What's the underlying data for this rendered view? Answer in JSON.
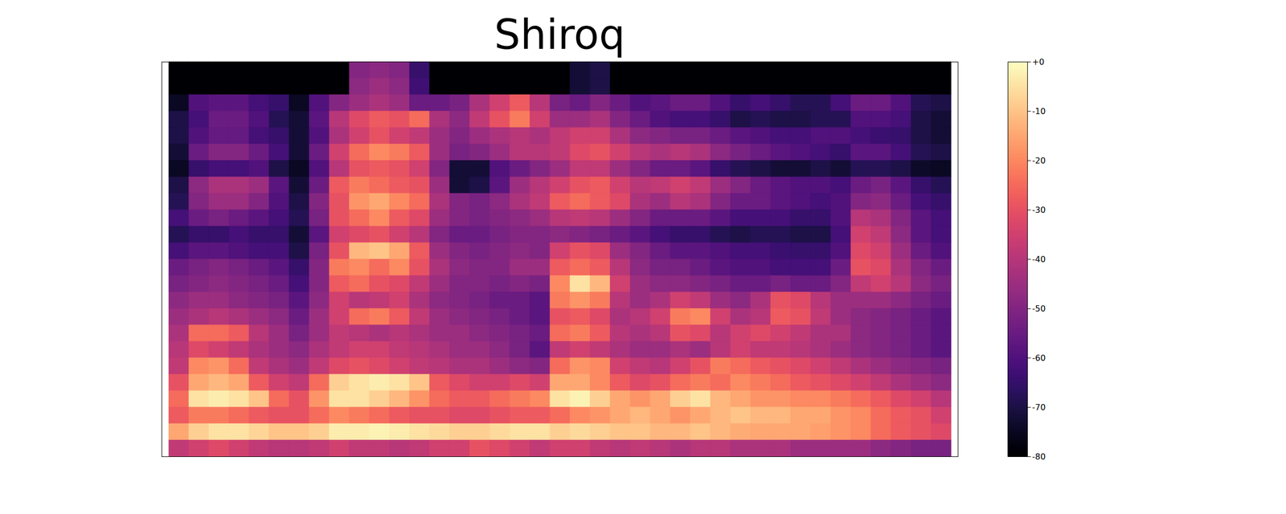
{
  "chart_data": {
    "type": "heatmap",
    "title": "Shiroq",
    "tick_labels": false,
    "color_range": [
      -80,
      0
    ],
    "color_ticks": [
      {
        "value": 0,
        "label": "+0"
      },
      -10,
      -20,
      -30,
      -40,
      -50,
      -60,
      -70,
      -80
    ],
    "cells": [
      [
        -80,
        -80,
        -80,
        -80,
        -80,
        -80,
        -80,
        -80,
        -80,
        -50,
        -48,
        -50,
        -65,
        -80,
        -80,
        -80,
        -80,
        -80,
        -80,
        -80,
        -72,
        -70,
        -80,
        -80,
        -80,
        -80,
        -80,
        -80,
        -80,
        -80,
        -80,
        -80,
        -80,
        -80,
        -80,
        -80,
        -80,
        -80,
        -80
      ],
      [
        -80,
        -80,
        -80,
        -80,
        -80,
        -80,
        -80,
        -80,
        -80,
        -48,
        -45,
        -48,
        -63,
        -80,
        -80,
        -80,
        -80,
        -80,
        -80,
        -80,
        -72,
        -70,
        -80,
        -80,
        -80,
        -80,
        -80,
        -80,
        -80,
        -80,
        -80,
        -80,
        -80,
        -80,
        -80,
        -80,
        -80,
        -80,
        -80
      ],
      [
        -75,
        -60,
        -58,
        -58,
        -62,
        -65,
        -75,
        -60,
        -50,
        -45,
        -42,
        -45,
        -55,
        -55,
        -52,
        -42,
        -35,
        -28,
        -40,
        -52,
        -55,
        -50,
        -55,
        -60,
        -58,
        -55,
        -55,
        -60,
        -65,
        -62,
        -65,
        -68,
        -68,
        -62,
        -55,
        -55,
        -60,
        -68,
        -70
      ],
      [
        -70,
        -62,
        -55,
        -55,
        -60,
        -68,
        -72,
        -58,
        -40,
        -32,
        -28,
        -30,
        -25,
        -42,
        -48,
        -38,
        -30,
        -22,
        -35,
        -45,
        -45,
        -42,
        -50,
        -55,
        -60,
        -62,
        -62,
        -65,
        -70,
        -68,
        -70,
        -70,
        -68,
        -68,
        -60,
        -60,
        -62,
        -70,
        -72
      ],
      [
        -70,
        -60,
        -56,
        -56,
        -62,
        -65,
        -72,
        -60,
        -42,
        -35,
        -30,
        -35,
        -38,
        -45,
        -50,
        -45,
        -42,
        -40,
        -42,
        -38,
        -35,
        -35,
        -42,
        -48,
        -50,
        -52,
        -52,
        -55,
        -58,
        -60,
        -62,
        -62,
        -60,
        -60,
        -62,
        -64,
        -65,
        -70,
        -72
      ],
      [
        -72,
        -55,
        -50,
        -50,
        -55,
        -62,
        -72,
        -55,
        -35,
        -25,
        -20,
        -22,
        -28,
        -45,
        -52,
        -50,
        -45,
        -40,
        -40,
        -38,
        -32,
        -30,
        -35,
        -40,
        -42,
        -40,
        -42,
        -48,
        -52,
        -55,
        -58,
        -60,
        -62,
        -65,
        -58,
        -58,
        -62,
        -68,
        -70
      ],
      [
        -75,
        -65,
        -62,
        -62,
        -60,
        -70,
        -75,
        -60,
        -40,
        -30,
        -28,
        -30,
        -35,
        -50,
        -72,
        -72,
        -60,
        -55,
        -50,
        -45,
        -38,
        -38,
        -45,
        -50,
        -55,
        -55,
        -58,
        -65,
        -68,
        -70,
        -72,
        -72,
        -70,
        -72,
        -68,
        -68,
        -70,
        -74,
        -75
      ],
      [
        -70,
        -48,
        -42,
        -42,
        -45,
        -58,
        -72,
        -55,
        -28,
        -22,
        -25,
        -28,
        -30,
        -45,
        -72,
        -70,
        -58,
        -45,
        -40,
        -35,
        -30,
        -28,
        -35,
        -40,
        -38,
        -35,
        -38,
        -45,
        -50,
        -55,
        -58,
        -60,
        -60,
        -62,
        -55,
        -52,
        -58,
        -65,
        -68
      ],
      [
        -68,
        -50,
        -45,
        -45,
        -50,
        -60,
        -70,
        -50,
        -30,
        -18,
        -15,
        -20,
        -25,
        -42,
        -50,
        -52,
        -48,
        -42,
        -38,
        -28,
        -25,
        -28,
        -32,
        -42,
        -45,
        -40,
        -42,
        -50,
        -55,
        -55,
        -58,
        -60,
        -62,
        -60,
        -50,
        -48,
        -55,
        -62,
        -65
      ],
      [
        -62,
        -55,
        -52,
        -55,
        -58,
        -62,
        -68,
        -52,
        -30,
        -25,
        -20,
        -28,
        -32,
        -45,
        -50,
        -52,
        -50,
        -48,
        -45,
        -40,
        -38,
        -40,
        -45,
        -50,
        -55,
        -55,
        -55,
        -58,
        -62,
        -62,
        -62,
        -65,
        -65,
        -60,
        -40,
        -42,
        -50,
        -58,
        -62
      ],
      [
        -68,
        -65,
        -65,
        -62,
        -65,
        -65,
        -72,
        -58,
        -35,
        -32,
        -30,
        -35,
        -40,
        -50,
        -55,
        -55,
        -52,
        -50,
        -50,
        -48,
        -50,
        -52,
        -55,
        -58,
        -62,
        -65,
        -65,
        -68,
        -70,
        -68,
        -68,
        -70,
        -70,
        -62,
        -35,
        -38,
        -48,
        -58,
        -62
      ],
      [
        -62,
        -58,
        -58,
        -60,
        -62,
        -62,
        -70,
        -52,
        -30,
        -12,
        -10,
        -15,
        -28,
        -45,
        -50,
        -52,
        -50,
        -48,
        -50,
        -35,
        -30,
        -32,
        -45,
        -50,
        -55,
        -58,
        -58,
        -60,
        -62,
        -62,
        -64,
        -65,
        -65,
        -60,
        -32,
        -35,
        -45,
        -55,
        -60
      ],
      [
        -55,
        -52,
        -50,
        -52,
        -55,
        -58,
        -65,
        -50,
        -22,
        -20,
        -25,
        -20,
        -30,
        -42,
        -48,
        -50,
        -50,
        -45,
        -45,
        -28,
        -25,
        -28,
        -40,
        -48,
        -52,
        -52,
        -55,
        -58,
        -60,
        -60,
        -62,
        -62,
        -62,
        -55,
        -30,
        -32,
        -42,
        -50,
        -55
      ],
      [
        -52,
        -50,
        -48,
        -50,
        -52,
        -55,
        -62,
        -50,
        -28,
        -25,
        -30,
        -32,
        -38,
        -45,
        -50,
        -50,
        -52,
        -50,
        -52,
        -20,
        -5,
        -12,
        -35,
        -45,
        -48,
        -48,
        -50,
        -52,
        -55,
        -55,
        -52,
        -55,
        -55,
        -50,
        -38,
        -35,
        -40,
        -48,
        -52
      ],
      [
        -48,
        -45,
        -45,
        -48,
        -50,
        -52,
        -58,
        -48,
        -35,
        -40,
        -38,
        -35,
        -42,
        -48,
        -50,
        -52,
        -55,
        -55,
        -58,
        -22,
        -18,
        -22,
        -40,
        -45,
        -42,
        -35,
        -38,
        -45,
        -48,
        -42,
        -30,
        -32,
        -40,
        -45,
        -45,
        -45,
        -48,
        -52,
        -55
      ],
      [
        -45,
        -42,
        -40,
        -42,
        -45,
        -48,
        -55,
        -45,
        -35,
        -25,
        -22,
        -28,
        -38,
        -45,
        -48,
        -50,
        -52,
        -55,
        -58,
        -30,
        -28,
        -32,
        -42,
        -40,
        -35,
        -22,
        -20,
        -35,
        -42,
        -40,
        -28,
        -30,
        -38,
        -45,
        -48,
        -50,
        -52,
        -55,
        -58
      ],
      [
        -42,
        -25,
        -25,
        -28,
        -40,
        -45,
        -52,
        -45,
        -38,
        -40,
        -42,
        -40,
        -42,
        -45,
        -45,
        -48,
        -50,
        -52,
        -55,
        -25,
        -22,
        -28,
        -40,
        -42,
        -40,
        -30,
        -32,
        -40,
        -35,
        -32,
        -35,
        -38,
        -42,
        -42,
        -48,
        -50,
        -52,
        -55,
        -58
      ],
      [
        -40,
        -32,
        -35,
        -38,
        -42,
        -45,
        -48,
        -42,
        -38,
        -35,
        -35,
        -38,
        -40,
        -42,
        -45,
        -45,
        -48,
        -52,
        -58,
        -38,
        -35,
        -38,
        -42,
        -45,
        -45,
        -42,
        -45,
        -40,
        -35,
        -38,
        -38,
        -40,
        -42,
        -45,
        -48,
        -50,
        -52,
        -55,
        -58
      ],
      [
        -38,
        -20,
        -18,
        -25,
        -38,
        -42,
        -45,
        -38,
        -32,
        -30,
        -32,
        -35,
        -38,
        -40,
        -42,
        -42,
        -45,
        -48,
        -50,
        -25,
        -18,
        -20,
        -35,
        -38,
        -40,
        -35,
        -30,
        -22,
        -25,
        -28,
        -30,
        -32,
        -35,
        -38,
        -42,
        -45,
        -48,
        -50,
        -52
      ],
      [
        -30,
        -15,
        -12,
        -15,
        -28,
        -35,
        -38,
        -25,
        -8,
        -5,
        -3,
        -5,
        -10,
        -28,
        -32,
        -35,
        -35,
        -32,
        -35,
        -15,
        -15,
        -20,
        -28,
        -32,
        -30,
        -25,
        -22,
        -25,
        -20,
        -22,
        -25,
        -28,
        -30,
        -32,
        -35,
        -38,
        -42,
        -45,
        -48
      ],
      [
        -25,
        -5,
        -3,
        -5,
        -10,
        -25,
        -30,
        -18,
        -5,
        -5,
        -8,
        -12,
        -18,
        -25,
        -28,
        -28,
        -25,
        -22,
        -20,
        -5,
        -2,
        -8,
        -15,
        -18,
        -15,
        -8,
        -5,
        -12,
        -15,
        -18,
        -18,
        -20,
        -20,
        -22,
        -25,
        -28,
        -32,
        -35,
        -40
      ],
      [
        -28,
        -22,
        -22,
        -25,
        -28,
        -30,
        -30,
        -25,
        -20,
        -22,
        -25,
        -28,
        -30,
        -30,
        -32,
        -32,
        -30,
        -28,
        -28,
        -25,
        -20,
        -18,
        -15,
        -12,
        -15,
        -18,
        -15,
        -12,
        -10,
        -12,
        -12,
        -15,
        -15,
        -18,
        -20,
        -25,
        -28,
        -30,
        -35
      ],
      [
        -15,
        -8,
        -5,
        -5,
        -7,
        -10,
        -10,
        -8,
        -3,
        -3,
        -2,
        -3,
        -5,
        -6,
        -8,
        -8,
        -6,
        -5,
        -5,
        -8,
        -6,
        -8,
        -10,
        -10,
        -12,
        -12,
        -10,
        -12,
        -14,
        -15,
        -15,
        -15,
        -16,
        -18,
        -20,
        -25,
        -28,
        -30,
        -32
      ],
      [
        -38,
        -35,
        -32,
        -35,
        -38,
        -40,
        -40,
        -38,
        -35,
        -38,
        -38,
        -40,
        -38,
        -35,
        -35,
        -30,
        -32,
        -35,
        -38,
        -35,
        -35,
        -38,
        -40,
        -38,
        -40,
        -42,
        -40,
        -40,
        -42,
        -42,
        -42,
        -45,
        -45,
        -45,
        -45,
        -48,
        -50,
        -52,
        -52
      ]
    ]
  }
}
